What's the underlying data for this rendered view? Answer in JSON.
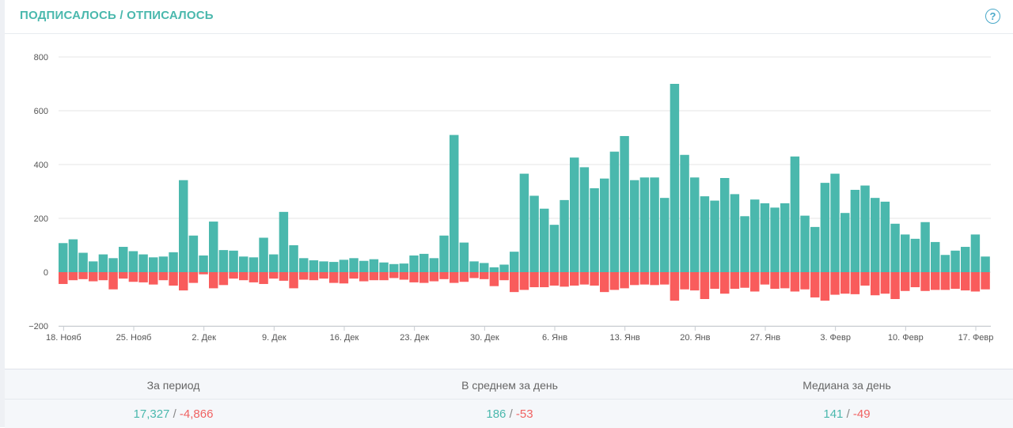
{
  "header": {
    "title": "ПОДПИСАЛОСЬ / ОТПИСАЛОСЬ",
    "title_color": "#4ab8ad",
    "help_icon": "question-circle-icon",
    "help_symbol": "?"
  },
  "colors": {
    "positive": "#4ab8ad",
    "negative": "#f95c5c",
    "grid": "#e6e6e6"
  },
  "chart_data": {
    "type": "bar",
    "title": "ПОДПИСАЛОСЬ / ОТПИСАЛОСЬ",
    "ylim": [
      -200,
      800
    ],
    "yticks": [
      800,
      600,
      400,
      200,
      0,
      -200
    ],
    "ytick_labels": [
      "800",
      "600",
      "400",
      "200",
      "0",
      "−200"
    ],
    "xtick_labels": [
      {
        "label": "18. Нояб",
        "index": 0
      },
      {
        "label": "25. Нояб",
        "index": 7
      },
      {
        "label": "2. Дек",
        "index": 14
      },
      {
        "label": "9. Дек",
        "index": 21
      },
      {
        "label": "16. Дек",
        "index": 28
      },
      {
        "label": "23. Дек",
        "index": 35
      },
      {
        "label": "30. Дек",
        "index": 42
      },
      {
        "label": "6. Янв",
        "index": 49
      },
      {
        "label": "13. Янв",
        "index": 56
      },
      {
        "label": "20. Янв",
        "index": 63
      },
      {
        "label": "27. Янв",
        "index": 70
      },
      {
        "label": "3. Февр",
        "index": 77
      },
      {
        "label": "10. Февр",
        "index": 84
      },
      {
        "label": "17. Февр",
        "index": 91
      }
    ],
    "grid": true,
    "legend": "none",
    "series": [
      {
        "values": [
          108,
          122,
          72,
          40,
          66,
          52,
          94,
          78,
          66,
          55,
          58,
          74,
          342,
          136,
          62,
          188,
          82,
          80,
          58,
          55,
          128,
          66,
          224,
          100,
          52,
          44,
          40,
          38,
          46,
          52,
          42,
          48,
          36,
          30,
          32,
          62,
          68,
          52,
          136,
          510,
          110,
          40,
          34,
          18,
          28,
          76,
          366,
          284,
          236,
          176,
          268,
          426,
          390,
          312,
          348,
          448,
          506,
          342,
          352,
          352,
          276,
          700,
          436,
          352,
          282,
          266,
          350,
          290,
          208,
          270,
          256,
          240,
          256,
          430,
          210,
          168,
          332,
          366,
          220,
          306,
          322,
          276,
          262,
          180,
          140,
          124,
          186,
          112,
          64,
          80,
          94,
          140,
          58
        ]
      },
      {
        "values": [
          -44,
          -30,
          -26,
          -34,
          -30,
          -64,
          -24,
          -36,
          -38,
          -46,
          -30,
          -50,
          -68,
          -40,
          -8,
          -60,
          -48,
          -24,
          -30,
          -38,
          -44,
          -24,
          -32,
          -60,
          -28,
          -30,
          -24,
          -40,
          -42,
          -24,
          -34,
          -30,
          -30,
          -22,
          -28,
          -38,
          -40,
          -34,
          -26,
          -40,
          -36,
          -22,
          -26,
          -52,
          -30,
          -74,
          -66,
          -56,
          -56,
          -50,
          -54,
          -50,
          -46,
          -50,
          -74,
          -66,
          -60,
          -48,
          -46,
          -48,
          -46,
          -106,
          -64,
          -68,
          -100,
          -62,
          -80,
          -62,
          -58,
          -72,
          -46,
          -62,
          -60,
          -72,
          -64,
          -94,
          -106,
          -84,
          -80,
          -82,
          -50,
          -86,
          -80,
          -100,
          -70,
          -56,
          -70,
          -66,
          -66,
          -62,
          -68,
          -72,
          -64
        ]
      }
    ]
  },
  "stats": [
    {
      "label": "За период",
      "positive": "17,327",
      "negative": "-4,866"
    },
    {
      "label": "В среднем за день",
      "positive": "186",
      "negative": "-53"
    },
    {
      "label": "Медиана за день",
      "positive": "141",
      "negative": "-49"
    }
  ],
  "stats_separator": " / "
}
